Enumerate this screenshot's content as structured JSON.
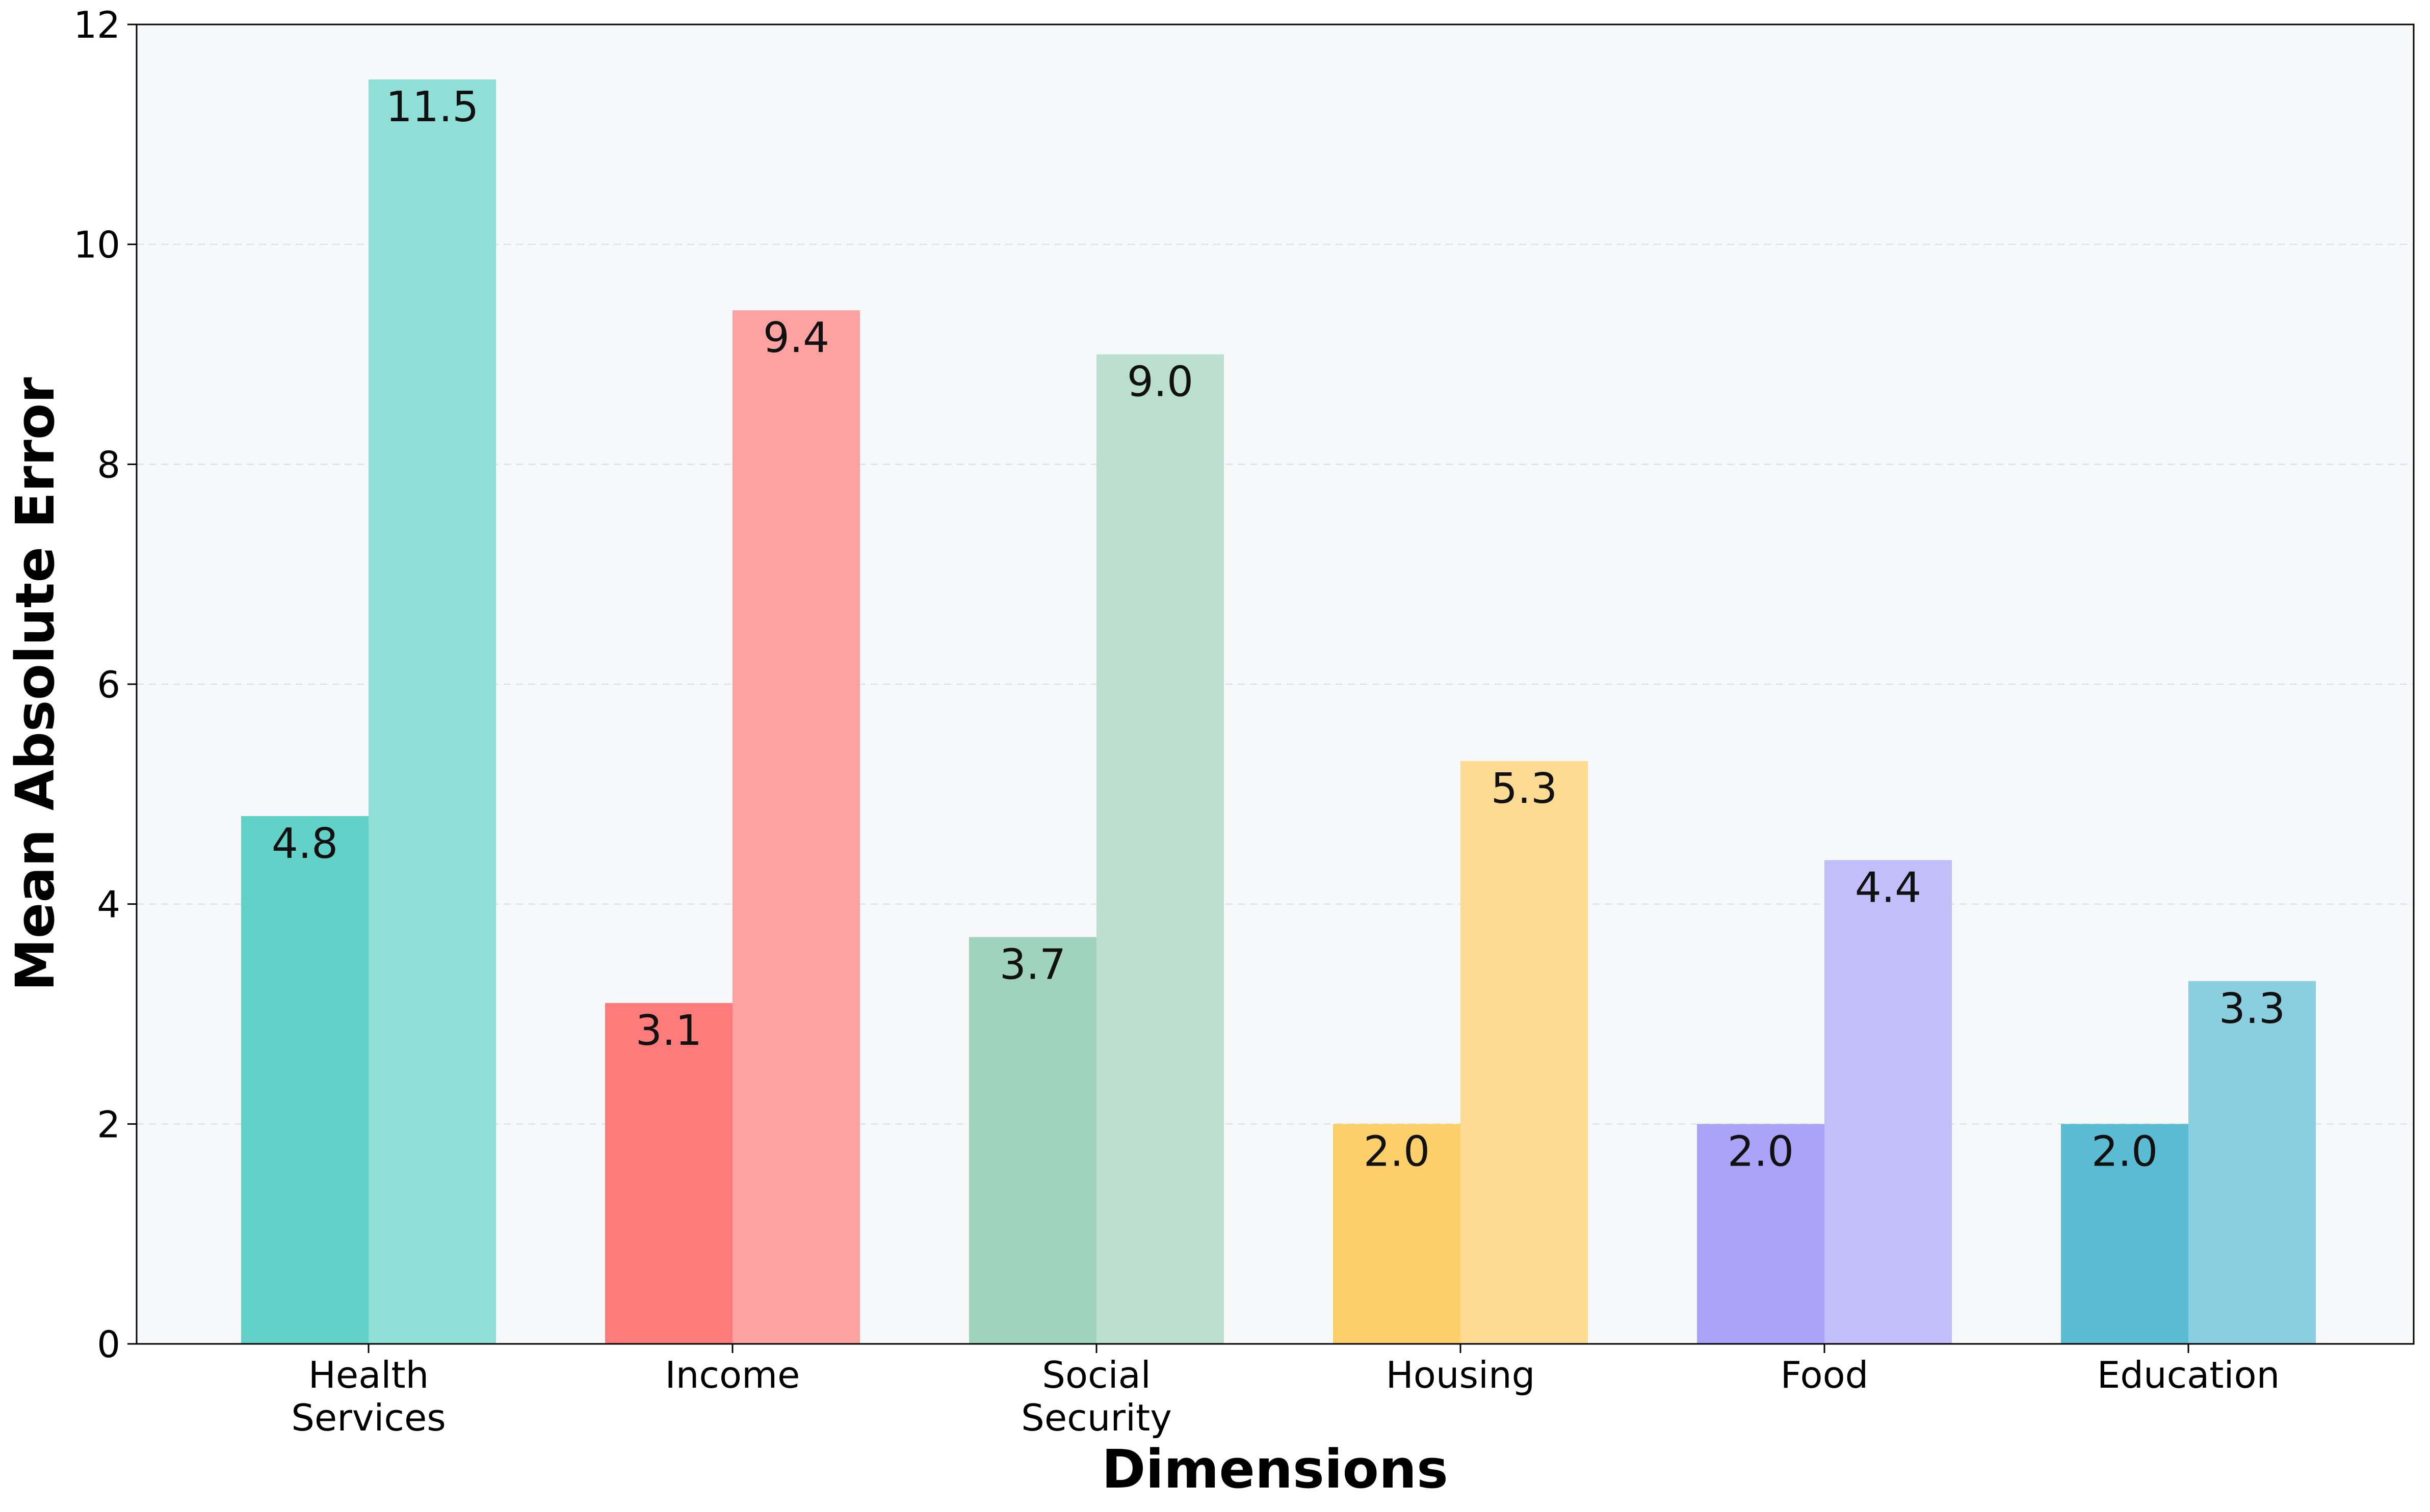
{
  "chart_data": {
    "type": "bar",
    "title": "",
    "xlabel": "Dimensions",
    "ylabel": "Mean Absolute Error",
    "ylim": [
      0,
      12
    ],
    "yticks": [
      0,
      2,
      4,
      6,
      8,
      10,
      12
    ],
    "grid": "y-dashed",
    "categories": [
      [
        "Health",
        "Services"
      ],
      [
        "Income"
      ],
      [
        "Social",
        "Security"
      ],
      [
        "Housing"
      ],
      [
        "Food"
      ],
      [
        "Education"
      ]
    ],
    "series": [
      {
        "values": [
          4.8,
          3.1,
          3.7,
          2.0,
          2.0,
          2.0
        ],
        "labels": [
          "4.8",
          "3.1",
          "3.7",
          "2.0",
          "2.0",
          "2.0"
        ]
      },
      {
        "values": [
          11.5,
          9.4,
          9.0,
          5.3,
          4.4,
          3.3
        ],
        "labels": [
          "11.5",
          "9.4",
          "9.0",
          "5.3",
          "4.4",
          "3.3"
        ]
      }
    ],
    "colors": {
      "dark": [
        "#62d2c9",
        "#fe7b7b",
        "#9fd3bd",
        "#fdcf6a",
        "#aaa4f8",
        "#5abbd3"
      ],
      "light": [
        "#8fdfd7",
        "#fea1a1",
        "#bbdfcf",
        "#fddb92",
        "#c2befa",
        "#8acfdf"
      ],
      "plot_background": "#f7f8fa"
    }
  }
}
